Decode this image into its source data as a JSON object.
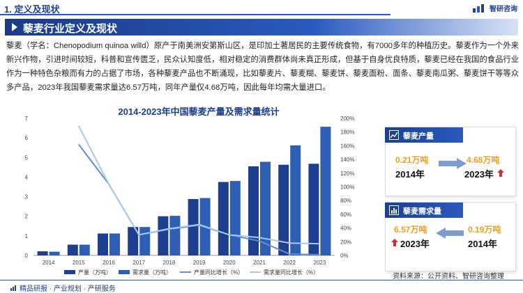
{
  "header": {
    "section": "1. 定义及现状",
    "logo_text": "智研咨询"
  },
  "banner": {
    "title": "藜麦行业定义及现状"
  },
  "body": {
    "paragraph": "藜麦（学名：Chenopodium quinoa willd）原产于南美洲安第斯山区，是印加土著居民的主要传统食物，有7000多年的种植历史。藜麦作为一个外来新兴作物，引进时间较短，科普和宣传匮乏，民众认知度低，相对稳定的消费群体尚未真正形成，但基于自身优良特质，藜麦已经在我国的食品行业作为一种特色杂粮而有力的占据了市场，各种藜麦产品也不断涌现，比如藜麦片、藜麦糊、藜麦饼、藜麦面粉、面条、藜麦南瓜粥、藜麦饼干等等众多产品，2023年我国藜麦需求量达6.57万吨，同年产量仅4.68万吨，因此每年均需大量进口。"
  },
  "chart_data": {
    "type": "bar",
    "title": "2014-2023年中国藜麦产量及需求量统计",
    "categories": [
      "2014",
      "2015",
      "2016",
      "2017",
      "2018",
      "2019",
      "2020",
      "2021",
      "2022",
      "2023"
    ],
    "series": [
      {
        "name": "产量（万吨）",
        "kind": "bar",
        "axis": "left",
        "color": "#1e3f8f",
        "values": [
          0.21,
          0.55,
          1.12,
          1.45,
          2.0,
          2.88,
          3.75,
          4.55,
          4.63,
          4.68
        ]
      },
      {
        "name": "需求量（万吨）",
        "kind": "bar",
        "axis": "left",
        "color": "#2f5fb5",
        "values": [
          0.19,
          0.55,
          1.12,
          1.45,
          2.02,
          2.93,
          3.8,
          4.78,
          5.62,
          6.57
        ]
      },
      {
        "name": "产量同比增长（%）",
        "kind": "line",
        "axis": "right",
        "color": "#5b8fd6",
        "values": [
          null,
          162,
          104,
          30,
          38,
          44,
          30,
          21,
          2,
          1
        ]
      },
      {
        "name": "需求量同比增长（%）",
        "kind": "line",
        "axis": "right",
        "color": "#a9c8ee",
        "values": [
          null,
          189,
          104,
          30,
          39,
          45,
          30,
          26,
          18,
          17
        ]
      }
    ],
    "left_axis": {
      "min": 0,
      "max": 7,
      "ticks": [
        "0",
        "1",
        "2",
        "3",
        "4",
        "5",
        "6",
        "7"
      ]
    },
    "right_axis": {
      "min": 0,
      "max": 200,
      "ticks": [
        "0%",
        "20%",
        "40%",
        "60%",
        "80%",
        "100%",
        "120%",
        "140%",
        "160%",
        "180%",
        "200%"
      ]
    },
    "grid": false,
    "legend_position": "bottom"
  },
  "cards": {
    "production": {
      "title": "藜麦产量",
      "from_value": "0.21万吨",
      "from_year": "2014年",
      "to_value": "4.68万吨",
      "to_year": "2023年"
    },
    "demand": {
      "title": "藜麦需求量",
      "from_value": "6.57万吨",
      "from_year": "2023年",
      "to_value": "0.19万吨",
      "to_year": "2014年"
    }
  },
  "footer": {
    "left_text": "精品研报 · 产业规划 · 产研服务",
    "source": "资料来源：公开资料、智研咨询整理"
  },
  "colors": {
    "brand": "#1d3f8c",
    "accent_orange": "#f0a020",
    "up_red": "#d62b2b"
  }
}
